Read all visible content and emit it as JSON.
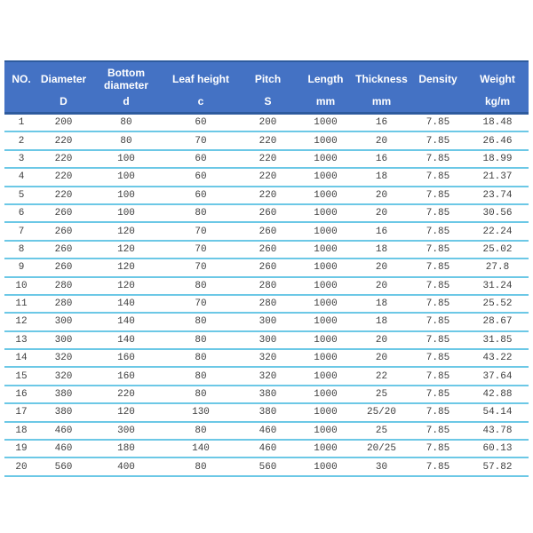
{
  "colors": {
    "header_bg": "#4472C4",
    "header_border": "#2E5B9E",
    "row_divider": "#6CC8E6",
    "header_text": "#FFFFFF",
    "cell_text": "#3D3D3D"
  },
  "chart_data": {
    "type": "table",
    "title": "",
    "legend": "none",
    "grid": "horizontal-dividers-only",
    "columns": [
      {
        "label": "NO.",
        "unit": ""
      },
      {
        "label": "Diameter",
        "unit": "D"
      },
      {
        "label": "Bottom diameter",
        "unit": "d"
      },
      {
        "label": "Leaf height",
        "unit": "c"
      },
      {
        "label": "Pitch",
        "unit": "S"
      },
      {
        "label": "Length",
        "unit": "mm"
      },
      {
        "label": "Thickness",
        "unit": "mm"
      },
      {
        "label": "Density",
        "unit": ""
      },
      {
        "label": "Weight",
        "unit": "kg/m"
      }
    ],
    "rows": [
      [
        "1",
        "200",
        "80",
        "60",
        "200",
        "1000",
        "16",
        "7.85",
        "18.48"
      ],
      [
        "2",
        "220",
        "80",
        "70",
        "220",
        "1000",
        "20",
        "7.85",
        "26.46"
      ],
      [
        "3",
        "220",
        "100",
        "60",
        "220",
        "1000",
        "16",
        "7.85",
        "18.99"
      ],
      [
        "4",
        "220",
        "100",
        "60",
        "220",
        "1000",
        "18",
        "7.85",
        "21.37"
      ],
      [
        "5",
        "220",
        "100",
        "60",
        "220",
        "1000",
        "20",
        "7.85",
        "23.74"
      ],
      [
        "6",
        "260",
        "100",
        "80",
        "260",
        "1000",
        "20",
        "7.85",
        "30.56"
      ],
      [
        "7",
        "260",
        "120",
        "70",
        "260",
        "1000",
        "16",
        "7.85",
        "22.24"
      ],
      [
        "8",
        "260",
        "120",
        "70",
        "260",
        "1000",
        "18",
        "7.85",
        "25.02"
      ],
      [
        "9",
        "260",
        "120",
        "70",
        "260",
        "1000",
        "20",
        "7.85",
        "27.8"
      ],
      [
        "10",
        "280",
        "120",
        "80",
        "280",
        "1000",
        "20",
        "7.85",
        "31.24"
      ],
      [
        "11",
        "280",
        "140",
        "70",
        "280",
        "1000",
        "18",
        "7.85",
        "25.52"
      ],
      [
        "12",
        "300",
        "140",
        "80",
        "300",
        "1000",
        "18",
        "7.85",
        "28.67"
      ],
      [
        "13",
        "300",
        "140",
        "80",
        "300",
        "1000",
        "20",
        "7.85",
        "31.85"
      ],
      [
        "14",
        "320",
        "160",
        "80",
        "320",
        "1000",
        "20",
        "7.85",
        "43.22"
      ],
      [
        "15",
        "320",
        "160",
        "80",
        "320",
        "1000",
        "22",
        "7.85",
        "37.64"
      ],
      [
        "16",
        "380",
        "220",
        "80",
        "380",
        "1000",
        "25",
        "7.85",
        "42.88"
      ],
      [
        "17",
        "380",
        "120",
        "130",
        "380",
        "1000",
        "25/20",
        "7.85",
        "54.14"
      ],
      [
        "18",
        "460",
        "300",
        "80",
        "460",
        "1000",
        "25",
        "7.85",
        "43.78"
      ],
      [
        "19",
        "460",
        "180",
        "140",
        "460",
        "1000",
        "20/25",
        "7.85",
        "60.13"
      ],
      [
        "20",
        "560",
        "400",
        "80",
        "560",
        "1000",
        "30",
        "7.85",
        "57.82"
      ]
    ]
  }
}
